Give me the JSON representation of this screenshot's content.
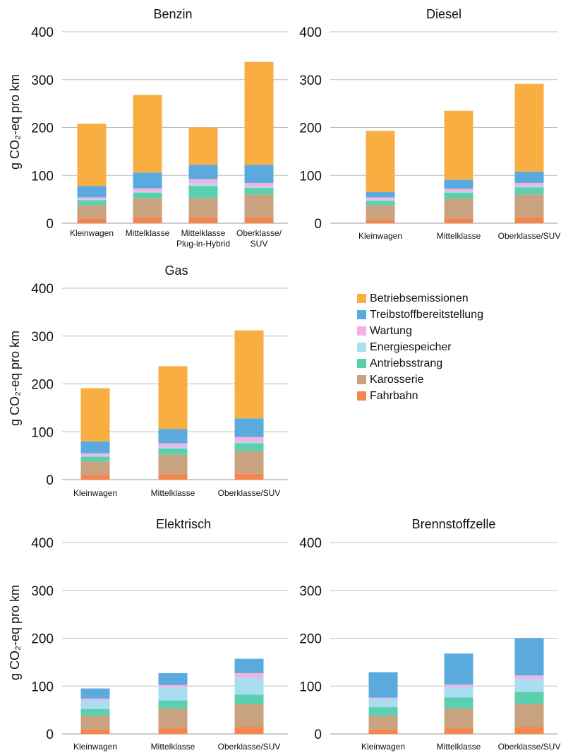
{
  "components": [
    {
      "key": "fahrbahn",
      "name": "Fahrbahn",
      "color": "#f5854b"
    },
    {
      "key": "karosserie",
      "name": "Karosserie",
      "color": "#c9a27f"
    },
    {
      "key": "antriebsstrang",
      "name": "Antriebsstrang",
      "color": "#5ccfae"
    },
    {
      "key": "energiespeicher",
      "name": "Energiespeicher",
      "color": "#a8def0"
    },
    {
      "key": "wartung",
      "name": "Wartung",
      "color": "#f2b3e3"
    },
    {
      "key": "treibstoff",
      "name": "Treibstoffbereitstellung",
      "color": "#5aaade"
    },
    {
      "key": "betrieb",
      "name": "Betriebsemissionen",
      "color": "#f9ae42"
    }
  ],
  "legend_order": [
    "betrieb",
    "treibstoff",
    "wartung",
    "energiespeicher",
    "antriebsstrang",
    "karosserie",
    "fahrbahn"
  ],
  "chart_data": [
    {
      "type": "bar",
      "stacked": true,
      "title": "Benzin",
      "ylabel": "g CO₂-eq pro km",
      "ylim": [
        0,
        400
      ],
      "yticks": [
        0,
        100,
        200,
        300,
        400
      ],
      "grid": true,
      "categories": [
        [
          "Kleinwagen"
        ],
        [
          "Mittelklasse"
        ],
        [
          "Mittelklasse",
          "Plug-in-Hybrid"
        ],
        [
          "Oberklasse/",
          "SUV"
        ]
      ],
      "series": [
        {
          "name": "Fahrbahn",
          "values": [
            10,
            11,
            11,
            12
          ]
        },
        {
          "name": "Karosserie",
          "values": [
            28,
            41,
            41,
            48
          ]
        },
        {
          "name": "Antriebsstrang",
          "values": [
            10,
            12,
            26,
            14
          ]
        },
        {
          "name": "Energiespeicher",
          "values": [
            2,
            2,
            5,
            2
          ]
        },
        {
          "name": "Wartung",
          "values": [
            4,
            7,
            9,
            8
          ]
        },
        {
          "name": "Treibstoffbereitstellung",
          "values": [
            24,
            33,
            30,
            38
          ]
        },
        {
          "name": "Betriebsemissionen",
          "values": [
            130,
            162,
            78,
            215
          ]
        }
      ]
    },
    {
      "type": "bar",
      "stacked": true,
      "title": "Diesel",
      "ylabel": "",
      "ylim": [
        0,
        400
      ],
      "yticks": [
        0,
        100,
        200,
        300,
        400
      ],
      "grid": true,
      "categories": [
        [
          "Kleinwagen"
        ],
        [
          "Mittelklasse"
        ],
        [
          "Oberklasse/SUV"
        ]
      ],
      "series": [
        {
          "name": "Fahrbahn",
          "values": [
            8,
            10,
            12
          ]
        },
        {
          "name": "Karosserie",
          "values": [
            30,
            41,
            48
          ]
        },
        {
          "name": "Antriebsstrang",
          "values": [
            9,
            13,
            15
          ]
        },
        {
          "name": "Energiespeicher",
          "values": [
            2,
            2,
            2
          ]
        },
        {
          "name": "Wartung",
          "values": [
            5,
            6,
            7
          ]
        },
        {
          "name": "Treibstoffbereitstellung",
          "values": [
            11,
            19,
            24
          ]
        },
        {
          "name": "Betriebsemissionen",
          "values": [
            128,
            144,
            183
          ]
        }
      ]
    },
    {
      "type": "bar",
      "stacked": true,
      "title": "Gas",
      "ylabel": "g CO₂-eq pro km",
      "ylim": [
        0,
        400
      ],
      "yticks": [
        0,
        100,
        200,
        300,
        400
      ],
      "grid": true,
      "categories": [
        [
          "Kleinwagen"
        ],
        [
          "Mittelklasse"
        ],
        [
          "Oberklasse/SUV"
        ]
      ],
      "series": [
        {
          "name": "Fahrbahn",
          "values": [
            10,
            11,
            12
          ]
        },
        {
          "name": "Karosserie",
          "values": [
            28,
            41,
            48
          ]
        },
        {
          "name": "Antriebsstrang",
          "values": [
            10,
            13,
            16
          ]
        },
        {
          "name": "Energiespeicher",
          "values": [
            2,
            3,
            3
          ]
        },
        {
          "name": "Wartung",
          "values": [
            5,
            8,
            10
          ]
        },
        {
          "name": "Treibstoffbereitstellung",
          "values": [
            25,
            30,
            39
          ]
        },
        {
          "name": "Betriebsemissionen",
          "values": [
            111,
            131,
            184
          ]
        }
      ]
    },
    {
      "type": "bar",
      "stacked": true,
      "title": "Elektrisch",
      "ylabel": "g CO₂-eq pro km",
      "ylim": [
        0,
        400
      ],
      "yticks": [
        0,
        100,
        200,
        300,
        400
      ],
      "grid": true,
      "categories": [
        [
          "Kleinwagen"
        ],
        [
          "Mittelklasse"
        ],
        [
          "Oberklasse/SUV"
        ]
      ],
      "series": [
        {
          "name": "Fahrbahn",
          "values": [
            10,
            12,
            14
          ]
        },
        {
          "name": "Karosserie",
          "values": [
            28,
            41,
            48
          ]
        },
        {
          "name": "Antriebsstrang",
          "values": [
            14,
            17,
            20
          ]
        },
        {
          "name": "Energiespeicher",
          "values": [
            18,
            27,
            36
          ]
        },
        {
          "name": "Wartung",
          "values": [
            4,
            5,
            9
          ]
        },
        {
          "name": "Treibstoffbereitstellung",
          "values": [
            21,
            25,
            30
          ]
        },
        {
          "name": "Betriebsemissionen",
          "values": [
            0,
            0,
            0
          ]
        }
      ]
    },
    {
      "type": "bar",
      "stacked": true,
      "title": "Brennstoffzelle",
      "ylabel": "",
      "ylim": [
        0,
        400
      ],
      "yticks": [
        0,
        100,
        200,
        300,
        400
      ],
      "grid": true,
      "categories": [
        [
          "Kleinwagen"
        ],
        [
          "Mittelklasse"
        ],
        [
          "Oberklasse/SUV"
        ]
      ],
      "series": [
        {
          "name": "Fahrbahn",
          "values": [
            10,
            12,
            14
          ]
        },
        {
          "name": "Karosserie",
          "values": [
            28,
            41,
            48
          ]
        },
        {
          "name": "Antriebsstrang",
          "values": [
            18,
            23,
            26
          ]
        },
        {
          "name": "Energiespeicher",
          "values": [
            17,
            22,
            27
          ]
        },
        {
          "name": "Wartung",
          "values": [
            3,
            5,
            7
          ]
        },
        {
          "name": "Treibstoffbereitstellung",
          "values": [
            53,
            65,
            78
          ]
        },
        {
          "name": "Betriebsemissionen",
          "values": [
            0,
            0,
            0
          ]
        }
      ]
    }
  ]
}
